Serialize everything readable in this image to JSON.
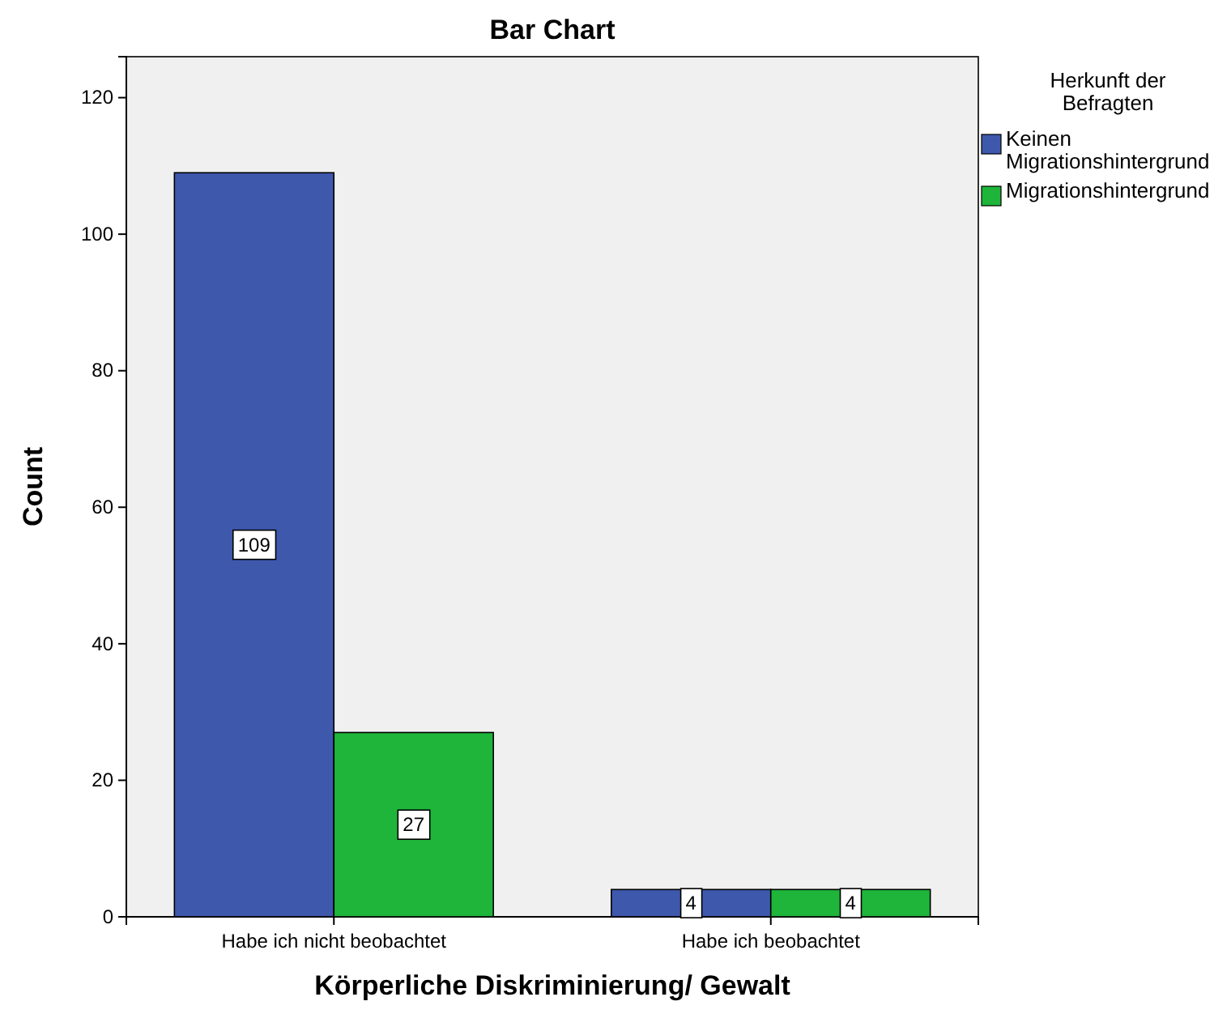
{
  "chart_data": {
    "type": "bar",
    "title": "Bar Chart",
    "xlabel": "Körperliche Diskriminierung/ Gewalt",
    "ylabel": "Count",
    "legend_title": "Herkunft der Befragten",
    "categories": [
      "Habe ich nicht beobachtet",
      "Habe ich beobachtet"
    ],
    "series": [
      {
        "name": "Keinen Migrationshintergrund",
        "color": "#3e58ac",
        "values": [
          109,
          4
        ]
      },
      {
        "name": "Migrationshintergrund",
        "color": "#1eb53a",
        "values": [
          27,
          4
        ]
      }
    ],
    "ylim": [
      0,
      126
    ],
    "yticks": [
      0,
      20,
      40,
      60,
      80,
      100,
      120
    ],
    "data_labels": true,
    "legend": "right",
    "grid": false
  }
}
